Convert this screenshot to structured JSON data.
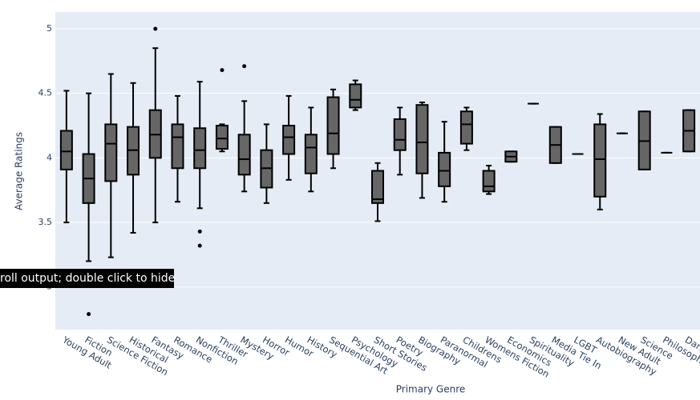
{
  "chart_data": {
    "type": "box",
    "x_label": "Primary Genre",
    "y_label": "Average Ratings",
    "categories": [
      "Young Adult",
      "Fiction",
      "Science Fiction",
      "Historical",
      "Fantasy",
      "Romance",
      "Nonfiction",
      "Thriller",
      "Mystery",
      "Horror",
      "Humor",
      "History",
      "Sequential Art",
      "Psychology",
      "Short Stories",
      "Poetry",
      "Biography",
      "Paranormal",
      "Childrens",
      "Womens Fiction",
      "Economics",
      "Spirituality",
      "Media Tie In",
      "LGBT",
      "Autobiography",
      "New Adult",
      "Science",
      "Philosophy",
      "Dark"
    ],
    "lower_whisker": [
      3.5,
      3.2,
      3.23,
      3.42,
      3.5,
      3.66,
      3.61,
      4.05,
      3.74,
      3.65,
      3.83,
      3.74,
      3.92,
      4.37,
      3.51,
      3.87,
      3.69,
      3.66,
      4.06,
      3.72,
      3.97,
      4.42,
      3.96,
      4.03,
      3.6,
      4.19,
      3.91,
      4.04,
      4.05
    ],
    "q1": [
      3.91,
      3.65,
      3.82,
      3.87,
      4.0,
      3.92,
      3.92,
      4.07,
      3.87,
      3.77,
      4.03,
      3.88,
      4.03,
      4.39,
      3.65,
      4.06,
      3.88,
      3.78,
      4.11,
      3.74,
      3.97,
      4.42,
      3.96,
      4.03,
      3.7,
      4.19,
      3.91,
      4.04,
      4.05
    ],
    "median": [
      4.05,
      3.84,
      4.11,
      4.06,
      4.18,
      4.16,
      4.06,
      4.15,
      3.99,
      3.92,
      4.16,
      4.08,
      4.19,
      4.45,
      3.68,
      4.14,
      4.12,
      3.9,
      4.26,
      3.78,
      4.01,
      4.42,
      4.1,
      4.03,
      3.99,
      4.19,
      4.13,
      4.04,
      4.21
    ],
    "q3": [
      4.21,
      4.03,
      4.26,
      4.24,
      4.37,
      4.26,
      4.23,
      4.25,
      4.18,
      4.06,
      4.25,
      4.18,
      4.47,
      4.57,
      3.9,
      4.3,
      4.41,
      4.04,
      4.36,
      3.9,
      4.05,
      4.42,
      4.24,
      4.03,
      4.26,
      4.19,
      4.36,
      4.04,
      4.37
    ],
    "upper_whisker": [
      4.52,
      4.5,
      4.65,
      4.58,
      4.85,
      4.48,
      4.59,
      4.26,
      4.44,
      4.26,
      4.48,
      4.39,
      4.53,
      4.6,
      3.96,
      4.39,
      4.43,
      4.28,
      4.39,
      3.94,
      4.05,
      4.42,
      4.24,
      4.03,
      4.34,
      4.19,
      4.36,
      4.04,
      4.37
    ],
    "outliers": [
      [],
      [
        2.79
      ],
      [],
      [],
      [
        5.0
      ],
      [],
      [
        3.43,
        3.32
      ],
      [
        4.68
      ],
      [
        4.71
      ],
      [],
      [],
      [],
      [],
      [],
      [],
      [],
      [],
      [],
      [],
      [],
      [],
      [],
      [],
      [],
      [],
      [],
      [],
      [],
      []
    ],
    "fill_color": "#666666",
    "line_color": "#000000",
    "ylim": [
      2.67,
      5.13
    ],
    "yticks": [
      3,
      3.5,
      4,
      4.5,
      5
    ],
    "grid": true
  },
  "overlay_text": "roll output; double click to hide"
}
